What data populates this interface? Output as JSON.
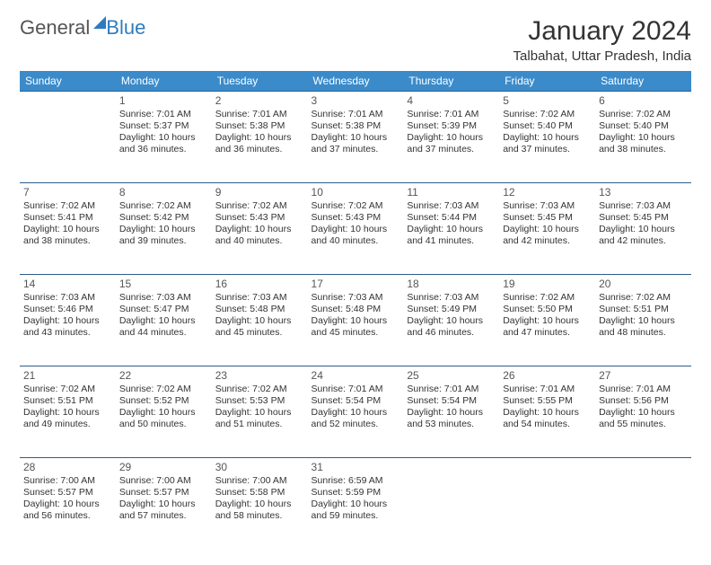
{
  "brand": {
    "word1": "General",
    "word2": "Blue"
  },
  "title": "January 2024",
  "subtitle": "Talbahat, Uttar Pradesh, India",
  "colors": {
    "header_bg": "#3b8bca",
    "header_text": "#ffffff",
    "row_border": "#2f5d87",
    "brand_blue": "#2f7bbf",
    "text": "#333333",
    "background": "#ffffff"
  },
  "dayNames": [
    "Sunday",
    "Monday",
    "Tuesday",
    "Wednesday",
    "Thursday",
    "Friday",
    "Saturday"
  ],
  "layout": {
    "startOffset": 1,
    "daysInMonth": 31,
    "columns": 7
  },
  "days": {
    "1": {
      "sunrise": "7:01 AM",
      "sunset": "5:37 PM",
      "daylight": "10 hours and 36 minutes."
    },
    "2": {
      "sunrise": "7:01 AM",
      "sunset": "5:38 PM",
      "daylight": "10 hours and 36 minutes."
    },
    "3": {
      "sunrise": "7:01 AM",
      "sunset": "5:38 PM",
      "daylight": "10 hours and 37 minutes."
    },
    "4": {
      "sunrise": "7:01 AM",
      "sunset": "5:39 PM",
      "daylight": "10 hours and 37 minutes."
    },
    "5": {
      "sunrise": "7:02 AM",
      "sunset": "5:40 PM",
      "daylight": "10 hours and 37 minutes."
    },
    "6": {
      "sunrise": "7:02 AM",
      "sunset": "5:40 PM",
      "daylight": "10 hours and 38 minutes."
    },
    "7": {
      "sunrise": "7:02 AM",
      "sunset": "5:41 PM",
      "daylight": "10 hours and 38 minutes."
    },
    "8": {
      "sunrise": "7:02 AM",
      "sunset": "5:42 PM",
      "daylight": "10 hours and 39 minutes."
    },
    "9": {
      "sunrise": "7:02 AM",
      "sunset": "5:43 PM",
      "daylight": "10 hours and 40 minutes."
    },
    "10": {
      "sunrise": "7:02 AM",
      "sunset": "5:43 PM",
      "daylight": "10 hours and 40 minutes."
    },
    "11": {
      "sunrise": "7:03 AM",
      "sunset": "5:44 PM",
      "daylight": "10 hours and 41 minutes."
    },
    "12": {
      "sunrise": "7:03 AM",
      "sunset": "5:45 PM",
      "daylight": "10 hours and 42 minutes."
    },
    "13": {
      "sunrise": "7:03 AM",
      "sunset": "5:45 PM",
      "daylight": "10 hours and 42 minutes."
    },
    "14": {
      "sunrise": "7:03 AM",
      "sunset": "5:46 PM",
      "daylight": "10 hours and 43 minutes."
    },
    "15": {
      "sunrise": "7:03 AM",
      "sunset": "5:47 PM",
      "daylight": "10 hours and 44 minutes."
    },
    "16": {
      "sunrise": "7:03 AM",
      "sunset": "5:48 PM",
      "daylight": "10 hours and 45 minutes."
    },
    "17": {
      "sunrise": "7:03 AM",
      "sunset": "5:48 PM",
      "daylight": "10 hours and 45 minutes."
    },
    "18": {
      "sunrise": "7:03 AM",
      "sunset": "5:49 PM",
      "daylight": "10 hours and 46 minutes."
    },
    "19": {
      "sunrise": "7:02 AM",
      "sunset": "5:50 PM",
      "daylight": "10 hours and 47 minutes."
    },
    "20": {
      "sunrise": "7:02 AM",
      "sunset": "5:51 PM",
      "daylight": "10 hours and 48 minutes."
    },
    "21": {
      "sunrise": "7:02 AM",
      "sunset": "5:51 PM",
      "daylight": "10 hours and 49 minutes."
    },
    "22": {
      "sunrise": "7:02 AM",
      "sunset": "5:52 PM",
      "daylight": "10 hours and 50 minutes."
    },
    "23": {
      "sunrise": "7:02 AM",
      "sunset": "5:53 PM",
      "daylight": "10 hours and 51 minutes."
    },
    "24": {
      "sunrise": "7:01 AM",
      "sunset": "5:54 PM",
      "daylight": "10 hours and 52 minutes."
    },
    "25": {
      "sunrise": "7:01 AM",
      "sunset": "5:54 PM",
      "daylight": "10 hours and 53 minutes."
    },
    "26": {
      "sunrise": "7:01 AM",
      "sunset": "5:55 PM",
      "daylight": "10 hours and 54 minutes."
    },
    "27": {
      "sunrise": "7:01 AM",
      "sunset": "5:56 PM",
      "daylight": "10 hours and 55 minutes."
    },
    "28": {
      "sunrise": "7:00 AM",
      "sunset": "5:57 PM",
      "daylight": "10 hours and 56 minutes."
    },
    "29": {
      "sunrise": "7:00 AM",
      "sunset": "5:57 PM",
      "daylight": "10 hours and 57 minutes."
    },
    "30": {
      "sunrise": "7:00 AM",
      "sunset": "5:58 PM",
      "daylight": "10 hours and 58 minutes."
    },
    "31": {
      "sunrise": "6:59 AM",
      "sunset": "5:59 PM",
      "daylight": "10 hours and 59 minutes."
    }
  },
  "labels": {
    "sunrise": "Sunrise:",
    "sunset": "Sunset:",
    "daylight": "Daylight:"
  }
}
